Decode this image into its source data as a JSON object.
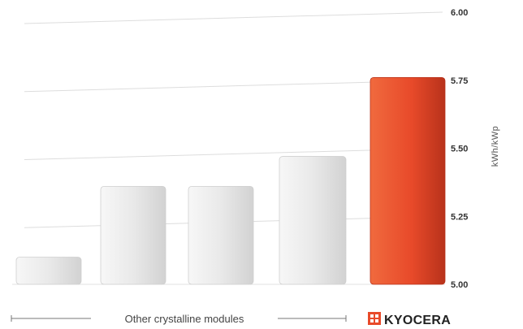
{
  "chart_data": {
    "type": "bar",
    "categories": [
      "",
      "",
      "",
      "",
      "KYOCERA"
    ],
    "values": [
      5.1,
      5.36,
      5.36,
      5.47,
      5.76
    ],
    "ylabel": "kWh/kWp",
    "ylim": [
      5.0,
      6.0
    ],
    "yticks": [
      "5.00",
      "5.25",
      "5.50",
      "5.75",
      "6.00"
    ],
    "grid": true,
    "groups": [
      {
        "label": "Other crystalline modules",
        "members": [
          0,
          1,
          2,
          3
        ]
      },
      {
        "label": "KYOCERA",
        "members": [
          4
        ]
      }
    ],
    "colors": {
      "other": "#e6e6e6",
      "kyocera": "#e84a2a",
      "kyocera_dark": "#b8321b",
      "grid": "#dddddd"
    }
  },
  "brand": {
    "name": "KYOCERA",
    "logo_icon": "kyocera-logo-icon"
  }
}
